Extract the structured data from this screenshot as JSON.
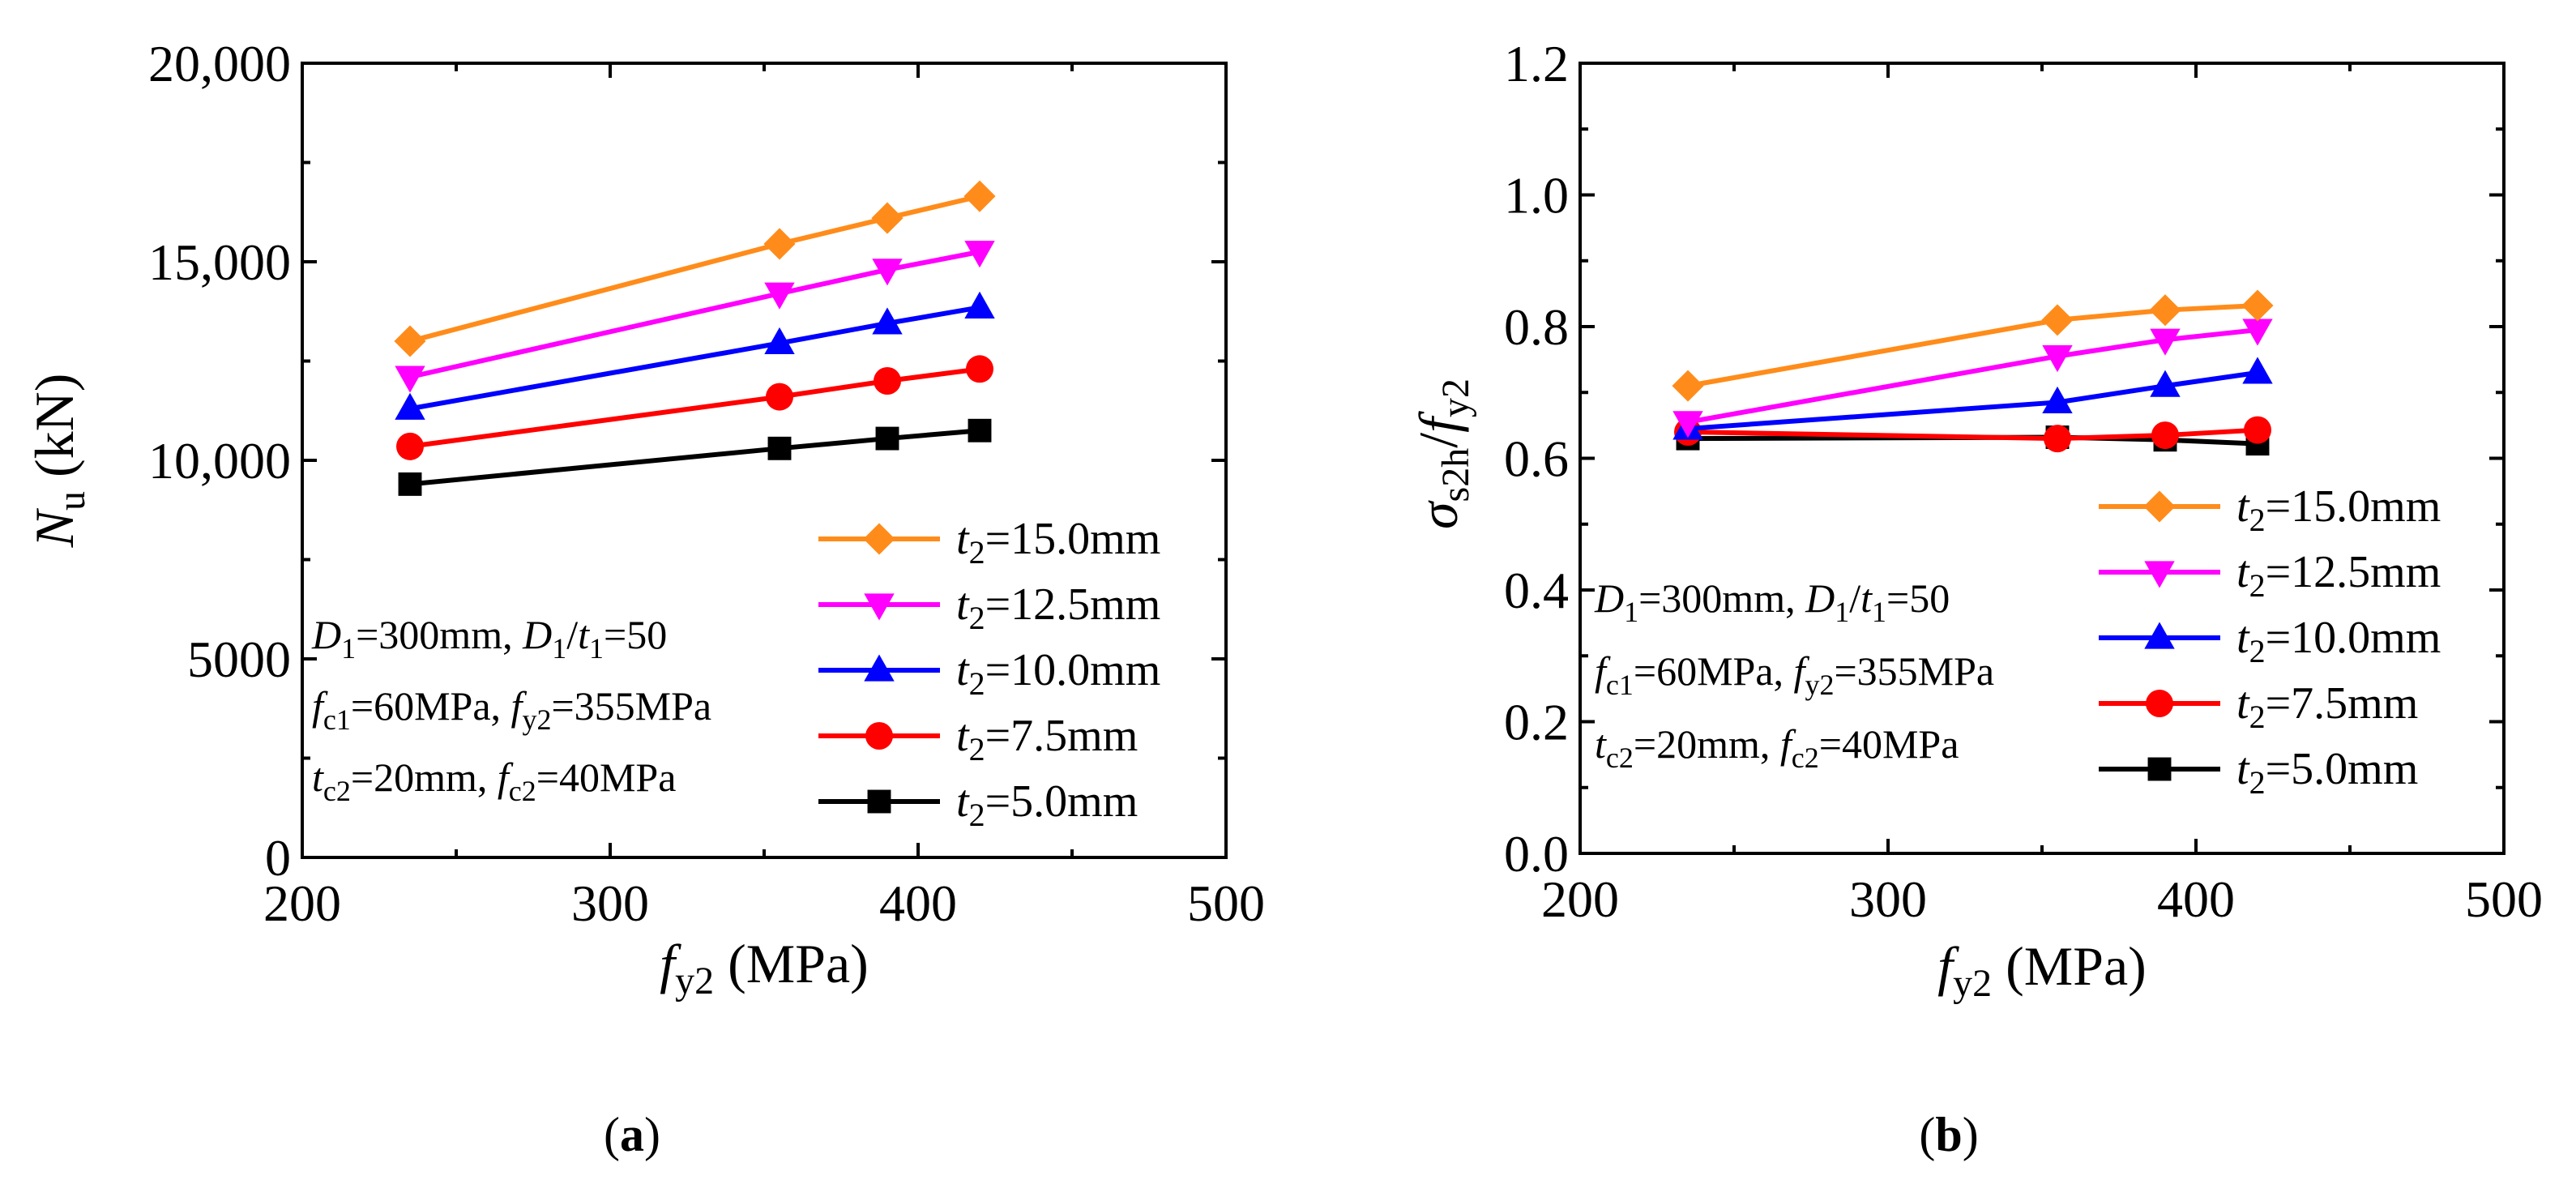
{
  "panels": [
    {
      "caption": "(a)",
      "caption_letter": "a",
      "chart_data": {
        "type": "line",
        "xlim": [
          200,
          500
        ],
        "ylim": [
          0,
          20000
        ],
        "x_ticks": [
          200,
          300,
          400,
          500
        ],
        "x_tick_labels": [
          "200",
          "300",
          "400",
          "500"
        ],
        "y_ticks": [
          0,
          5000,
          10000,
          15000,
          20000
        ],
        "y_tick_labels": [
          "0",
          "5000",
          "10,000",
          "15,000",
          "20,000"
        ],
        "xlabel": {
          "main": "f",
          "sub": "y2",
          "rest": " (MPa)"
        },
        "ylabel": {
          "main": "N",
          "sub": "u",
          "rest": " (kN)"
        },
        "x": [
          235,
          355,
          390,
          420
        ],
        "series": [
          {
            "name": "t2=15.0mm",
            "label_main": "t",
            "label_sub": "2",
            "label_rest": "=15.0mm",
            "marker": "diamond",
            "color": "#FF8C1A",
            "values": [
              13000,
              15450,
              16100,
              16650
            ]
          },
          {
            "name": "t2=12.5mm",
            "label_main": "t",
            "label_sub": "2",
            "label_rest": "=12.5mm",
            "marker": "triangle-down",
            "color": "#FF00FF",
            "values": [
              12100,
              14200,
              14800,
              15250
            ]
          },
          {
            "name": "t2=10.0mm",
            "label_main": "t",
            "label_sub": "2",
            "label_rest": "=10.0mm",
            "marker": "triangle-up",
            "color": "#0000FF",
            "values": [
              11300,
              12950,
              13450,
              13850
            ]
          },
          {
            "name": "t2=7.5mm",
            "label_main": "t",
            "label_sub": "2",
            "label_rest": "=7.5mm",
            "marker": "circle",
            "color": "#FF0000",
            "values": [
              10350,
              11600,
              12000,
              12300
            ]
          },
          {
            "name": "t2=5.0mm",
            "label_main": "t",
            "label_sub": "2",
            "label_rest": "=5.0mm",
            "marker": "square",
            "color": "#000000",
            "values": [
              9400,
              10300,
              10550,
              10750
            ]
          }
        ]
      }
    },
    {
      "caption": "(b)",
      "caption_letter": "b",
      "chart_data": {
        "type": "line",
        "xlim": [
          200,
          500
        ],
        "ylim": [
          0,
          1.2
        ],
        "x_ticks": [
          200,
          300,
          400,
          500
        ],
        "x_tick_labels": [
          "200",
          "300",
          "400",
          "500"
        ],
        "y_ticks": [
          0,
          0.2,
          0.4,
          0.6,
          0.8,
          1.0,
          1.2
        ],
        "y_tick_labels": [
          "0.0",
          "0.2",
          "0.4",
          "0.6",
          "0.8",
          "1.0",
          "1.2"
        ],
        "xlabel": {
          "main": "f",
          "sub": "y2",
          "rest": " (MPa)"
        },
        "ylabel": {
          "sigma": "σ",
          "sub1": "s2h",
          "slash": "/",
          "main2": "f",
          "sub2": "y2"
        },
        "x": [
          235,
          355,
          390,
          420
        ],
        "series": [
          {
            "name": "t2=15.0mm",
            "label_main": "t",
            "label_sub": "2",
            "label_rest": "=15.0mm",
            "marker": "diamond",
            "color": "#FF8C1A",
            "values": [
              0.71,
              0.81,
              0.825,
              0.832
            ]
          },
          {
            "name": "t2=12.5mm",
            "label_main": "t",
            "label_sub": "2",
            "label_rest": "=12.5mm",
            "marker": "triangle-down",
            "color": "#FF00FF",
            "values": [
              0.655,
              0.755,
              0.78,
              0.795
            ]
          },
          {
            "name": "t2=10.0mm",
            "label_main": "t",
            "label_sub": "2",
            "label_rest": "=10.0mm",
            "marker": "triangle-up",
            "color": "#0000FF",
            "values": [
              0.645,
              0.685,
              0.71,
              0.73
            ]
          },
          {
            "name": "t2=7.5mm",
            "label_main": "t",
            "label_sub": "2",
            "label_rest": "=7.5mm",
            "marker": "circle",
            "color": "#FF0000",
            "values": [
              0.64,
              0.63,
              0.635,
              0.643
            ]
          },
          {
            "name": "t2=5.0mm",
            "label_main": "t",
            "label_sub": "2",
            "label_rest": "=5.0mm",
            "marker": "square",
            "color": "#000000",
            "values": [
              0.63,
              0.632,
              0.628,
              0.622
            ]
          }
        ]
      }
    }
  ],
  "annotation": {
    "line1": {
      "D": "D",
      "sub1": "1",
      "t1": "=300mm, ",
      "D2": "D",
      "sub2": "1",
      "slash": "/",
      "t": "t",
      "sub3": "1",
      "t2": "=50"
    },
    "line2": {
      "f": "f",
      "sub1": "c1",
      "t1": "=60MPa, ",
      "f2": "f",
      "sub2": "y2",
      "t2": "=355MPa"
    },
    "line3": {
      "t": "t",
      "sub1": "c2",
      "t1": "=20mm, ",
      "f": "f",
      "sub2": "c2",
      "t2": "=40MPa"
    }
  }
}
